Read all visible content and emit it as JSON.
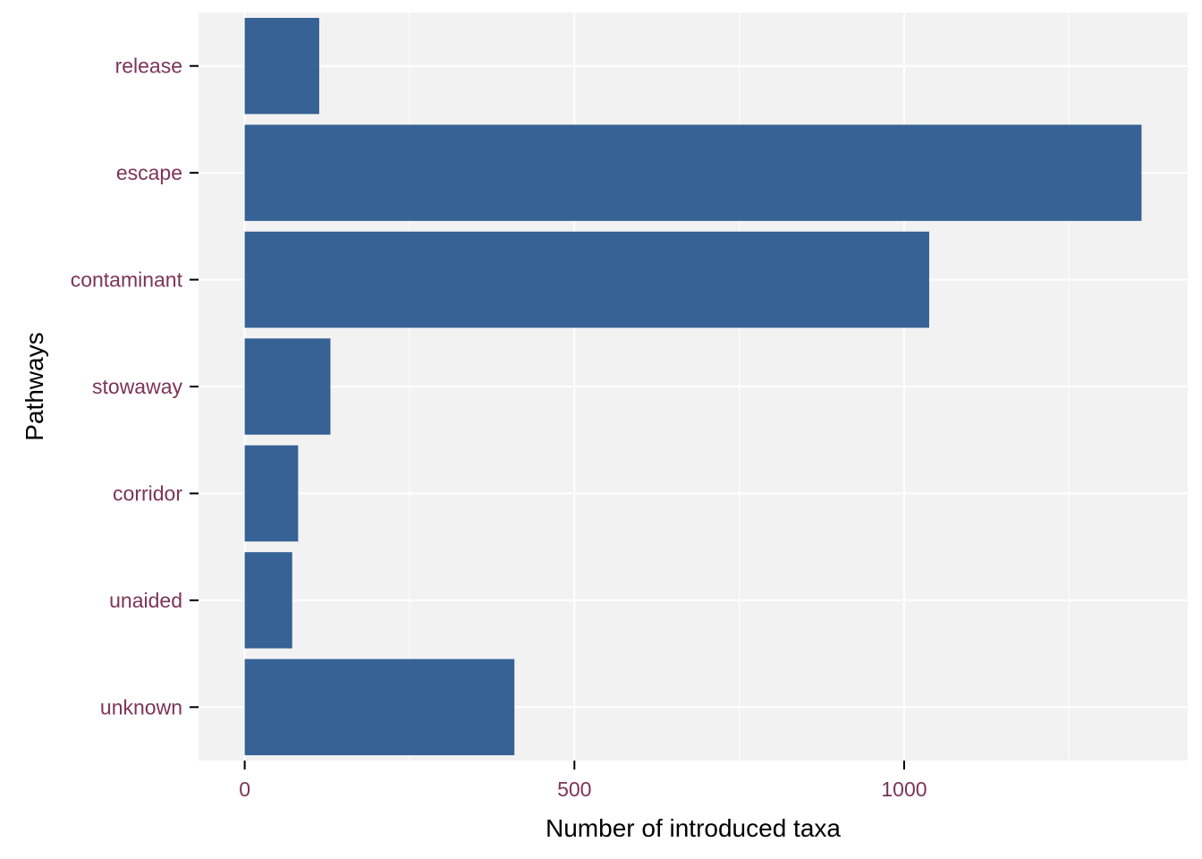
{
  "chart_data": {
    "type": "bar",
    "orientation": "horizontal",
    "categories": [
      "release",
      "escape",
      "contaminant",
      "stowaway",
      "corridor",
      "unaided",
      "unknown"
    ],
    "values": [
      113,
      1360,
      1038,
      130,
      81,
      72,
      409
    ],
    "xlabel": "Number of introduced taxa",
    "ylabel": "Pathways",
    "xlim": [
      -70,
      1430
    ],
    "x_ticks": [
      0,
      500,
      1000
    ],
    "x_minor_ticks": [
      250,
      750,
      1250
    ],
    "grid": true,
    "legend": "none",
    "colors": {
      "bar": "#376295",
      "panel_background": "#f2f2f2",
      "grid": "#ffffff",
      "tick_label": "#7d3458",
      "tick_mark": "#000000"
    }
  }
}
